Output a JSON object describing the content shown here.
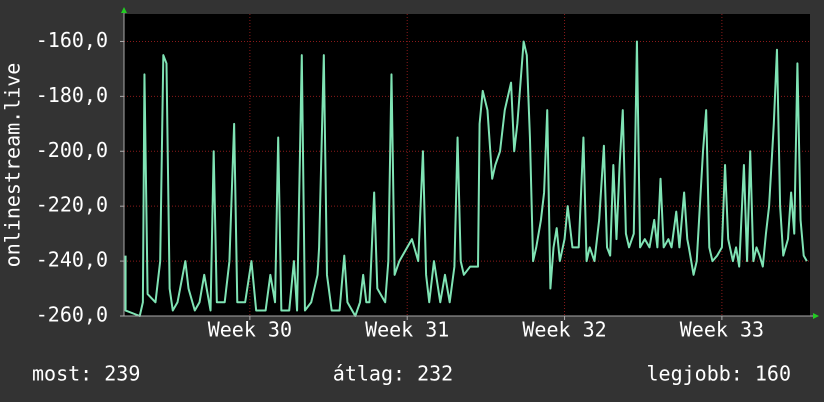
{
  "chart_data": {
    "type": "line",
    "ylabel": "onlinestream.live",
    "color": "#7fe3b4",
    "grid": true,
    "ylim": [
      -260,
      -150
    ],
    "yticks": [
      {
        "value": -260,
        "label": "-260,0"
      },
      {
        "value": -240,
        "label": "-240,0"
      },
      {
        "value": -220,
        "label": "-220,0"
      },
      {
        "value": -200,
        "label": "-200,0"
      },
      {
        "value": -180,
        "label": "-180,0"
      },
      {
        "value": -160,
        "label": "-160,0"
      }
    ],
    "xlim": [
      29.2,
      33.56
    ],
    "xticks": [
      {
        "value": 30,
        "label": "Week 30"
      },
      {
        "value": 31,
        "label": "Week 31"
      },
      {
        "value": 32,
        "label": "Week 32"
      },
      {
        "value": 33,
        "label": "Week 33"
      }
    ],
    "x": [
      29.21,
      29.21,
      29.3,
      29.32,
      29.33,
      29.35,
      29.4,
      29.43,
      29.45,
      29.47,
      29.49,
      29.51,
      29.54,
      29.59,
      29.61,
      29.65,
      29.68,
      29.71,
      29.75,
      29.77,
      29.79,
      29.84,
      29.87,
      29.9,
      29.92,
      29.97,
      30.01,
      30.04,
      30.1,
      30.13,
      30.16,
      30.18,
      30.2,
      30.25,
      30.28,
      30.3,
      30.33,
      30.35,
      30.39,
      30.43,
      30.44,
      30.47,
      30.49,
      30.52,
      30.57,
      30.6,
      30.62,
      30.67,
      30.7,
      30.72,
      30.74,
      30.76,
      30.79,
      30.81,
      30.86,
      30.88,
      30.9,
      30.92,
      30.95,
      31.0,
      31.03,
      31.07,
      31.1,
      31.12,
      31.14,
      31.17,
      31.21,
      31.24,
      31.27,
      31.3,
      31.32,
      31.34,
      31.36,
      31.4,
      31.45,
      31.46,
      31.48,
      31.51,
      31.54,
      31.56,
      31.59,
      31.62,
      31.64,
      31.66,
      31.68,
      31.7,
      31.72,
      31.74,
      31.76,
      31.78,
      31.8,
      31.82,
      31.85,
      31.87,
      31.89,
      31.91,
      31.93,
      31.95,
      31.97,
      32.0,
      32.02,
      32.05,
      32.09,
      32.12,
      32.14,
      32.16,
      32.19,
      32.22,
      32.25,
      32.27,
      32.29,
      32.31,
      32.33,
      32.35,
      32.37,
      32.39,
      32.41,
      32.44,
      32.46,
      32.48,
      32.51,
      32.54,
      32.57,
      32.59,
      32.61,
      32.63,
      32.66,
      32.68,
      32.71,
      32.73,
      32.76,
      32.78,
      32.79,
      32.82,
      32.84,
      32.86,
      32.88,
      32.9,
      32.92,
      32.94,
      32.97,
      33.0,
      33.02,
      33.04,
      33.07,
      33.09,
      33.11,
      33.14,
      33.16,
      33.18,
      33.2,
      33.22,
      33.24,
      33.26,
      33.28,
      33.3,
      33.33,
      33.35,
      33.37,
      33.39,
      33.42,
      33.44,
      33.46,
      33.48,
      33.5,
      33.52,
      33.54
    ],
    "values": [
      -238,
      -258,
      -260,
      -255,
      -172,
      -252,
      -255,
      -240,
      -165,
      -168,
      -250,
      -258,
      -255,
      -240,
      -250,
      -258,
      -255,
      -245,
      -258,
      -200,
      -255,
      -255,
      -240,
      -190,
      -255,
      -255,
      -240,
      -258,
      -258,
      -245,
      -255,
      -195,
      -258,
      -258,
      -240,
      -258,
      -165,
      -258,
      -255,
      -245,
      -235,
      -165,
      -245,
      -258,
      -258,
      -238,
      -255,
      -260,
      -255,
      -245,
      -255,
      -255,
      -215,
      -250,
      -255,
      -240,
      -172,
      -245,
      -240,
      -235,
      -232,
      -240,
      -200,
      -245,
      -255,
      -240,
      -255,
      -245,
      -255,
      -242,
      -195,
      -240,
      -245,
      -242,
      -242,
      -190,
      -178,
      -185,
      -210,
      -205,
      -200,
      -185,
      -180,
      -175,
      -200,
      -190,
      -175,
      -160,
      -165,
      -195,
      -240,
      -235,
      -225,
      -215,
      -185,
      -250,
      -235,
      -228,
      -240,
      -232,
      -220,
      -235,
      -235,
      -195,
      -240,
      -235,
      -240,
      -225,
      -198,
      -235,
      -238,
      -205,
      -232,
      -205,
      -185,
      -230,
      -235,
      -230,
      -160,
      -235,
      -232,
      -235,
      -225,
      -235,
      -210,
      -235,
      -232,
      -235,
      -222,
      -235,
      -215,
      -232,
      -235,
      -245,
      -240,
      -220,
      -200,
      -185,
      -235,
      -240,
      -238,
      -235,
      -205,
      -232,
      -240,
      -235,
      -242,
      -205,
      -240,
      -200,
      -240,
      -235,
      -238,
      -242,
      -230,
      -220,
      -190,
      -163,
      -220,
      -238,
      -232,
      -215,
      -230,
      -168,
      -225,
      -238,
      -240
    ],
    "stats": [
      "most: 239",
      "átlag: 232",
      "legjobb: 160"
    ]
  }
}
